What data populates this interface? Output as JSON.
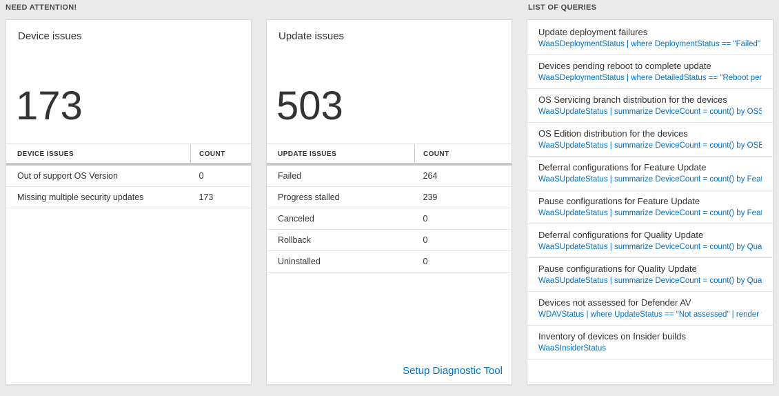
{
  "page": {
    "sections": {
      "need_attention": "NEED ATTENTION!",
      "list_of_queries": "LIST OF QUERIES"
    },
    "colors": {
      "accent_blue": "#0072c6",
      "text_dark": "#333333",
      "background": "#eaeaea",
      "panel_background": "#ffffff"
    }
  },
  "device_card": {
    "title": "Device issues",
    "count": "173",
    "table": {
      "headers": [
        "DEVICE ISSUES",
        "COUNT"
      ],
      "rows": [
        {
          "label": "Out of support OS Version",
          "count": "0"
        },
        {
          "label": "Missing multiple security updates",
          "count": "173"
        }
      ]
    }
  },
  "update_card": {
    "title": "Update issues",
    "count": "503",
    "table": {
      "headers": [
        "UPDATE ISSUES",
        "COUNT"
      ],
      "rows": [
        {
          "label": "Failed",
          "count": "264"
        },
        {
          "label": "Progress stalled",
          "count": "239"
        },
        {
          "label": "Canceled",
          "count": "0"
        },
        {
          "label": "Rollback",
          "count": "0"
        },
        {
          "label": "Uninstalled",
          "count": "0"
        }
      ]
    },
    "footer_link": "Setup Diagnostic Tool"
  },
  "queries": {
    "items": [
      {
        "title": "Update deployment failures",
        "query": "WaaSDeploymentStatus | where DeploymentStatus == \"Failed\" |..."
      },
      {
        "title": "Devices pending reboot to complete update",
        "query": "WaaSDeploymentStatus | where DetailedStatus == \"Reboot pend..."
      },
      {
        "title": "OS Servicing branch distribution for the devices",
        "query": "WaaSUpdateStatus | summarize DeviceCount = count() by OSSer..."
      },
      {
        "title": "OS Edition distribution for the devices",
        "query": "WaaSUpdateStatus | summarize DeviceCount = count() by OSEdit..."
      },
      {
        "title": "Deferral configurations for Feature Update",
        "query": "WaaSUpdateStatus | summarize DeviceCount = count() by Featur..."
      },
      {
        "title": "Pause configurations for Feature Update",
        "query": "WaaSUpdateStatus | summarize DeviceCount = count() by Featur..."
      },
      {
        "title": "Deferral configurations for Quality Update",
        "query": "WaaSUpdateStatus | summarize DeviceCount = count() by Qualit..."
      },
      {
        "title": "Pause configurations for Quality Update",
        "query": "WaaSUpdateStatus | summarize DeviceCount = count() by Qualit..."
      },
      {
        "title": "Devices not assessed for Defender AV",
        "query": "WDAVStatus | where UpdateStatus == \"Not assessed\" | render ta..."
      },
      {
        "title": "Inventory of devices on Insider builds",
        "query": "WaaSInsiderStatus"
      }
    ]
  }
}
